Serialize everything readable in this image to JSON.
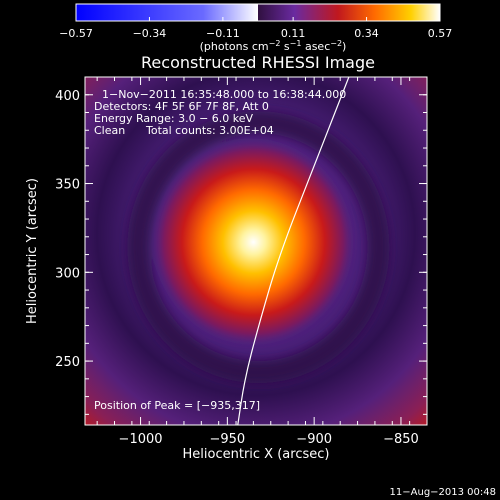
{
  "chart_data": {
    "type": "heatmap",
    "title": "Reconstructed RHESSI Image",
    "xlabel": "Heliocentric X (arcsec)",
    "ylabel": "Heliocentric Y (arcsec)",
    "xlim": [
      -1032,
      -835
    ],
    "ylim": [
      214,
      410
    ],
    "x_ticks": [
      -1000,
      -950,
      -900,
      -850
    ],
    "y_ticks": [
      250,
      300,
      350,
      400
    ],
    "x_tick_labels": [
      "−1000",
      "−950",
      "−900",
      "−850"
    ],
    "y_tick_labels": [
      "250",
      "300",
      "350",
      "400"
    ],
    "colorbar": {
      "range": [
        -0.57,
        0.57
      ],
      "ticks": [
        -0.57,
        -0.34,
        -0.11,
        0.11,
        0.34,
        0.57
      ],
      "tick_labels": [
        "−0.57",
        "−0.34",
        "−0.11",
        "0.11",
        "0.34",
        "0.57"
      ],
      "unit_prefix": "(photons cm",
      "unit_sup1": "−2",
      "unit_mid": " s",
      "unit_sup2": "−1",
      "unit_mid2": " asec",
      "unit_sup3": "−2",
      "unit_suffix": ")",
      "colors": [
        "#0000ff",
        "#5050ff",
        "#ffffff",
        "#3a1050",
        "#6a2aa0",
        "#c0181e",
        "#ff6a00",
        "#ffd000",
        "#ffffff"
      ]
    },
    "annotations": {
      "time_range": "1−Nov−2011 16:35:48.000 to 16:38:44.000",
      "detectors": "Detectors: 4F 5F 6F 7F 8F, Att 0",
      "energy": "Energy Range: 3.0 − 6.0 keV",
      "clean_label": "Clean",
      "total_counts": "Total counts: 3.00E+04",
      "peak": "Position of Peak = [−935,317]"
    },
    "source": {
      "peak_x": -935,
      "peak_y": 317,
      "peak_value": 0.57,
      "sigma_x_arcsec": 14,
      "sigma_y_arcsec": 15
    },
    "limb_curve": {
      "points": [
        [
          -880,
          410
        ],
        [
          -900,
          360
        ],
        [
          -920,
          310
        ],
        [
          -932,
          270
        ],
        [
          -940,
          240
        ],
        [
          -944,
          214
        ]
      ]
    },
    "colors": {
      "background": "#000000",
      "limb": "#ffffff",
      "purple_base": "#50207a",
      "dark_ring": "#2a0f45",
      "red_edge": "#b01a1e"
    }
  },
  "footer": {
    "timestamp": "11−Aug−2013 00:48"
  }
}
